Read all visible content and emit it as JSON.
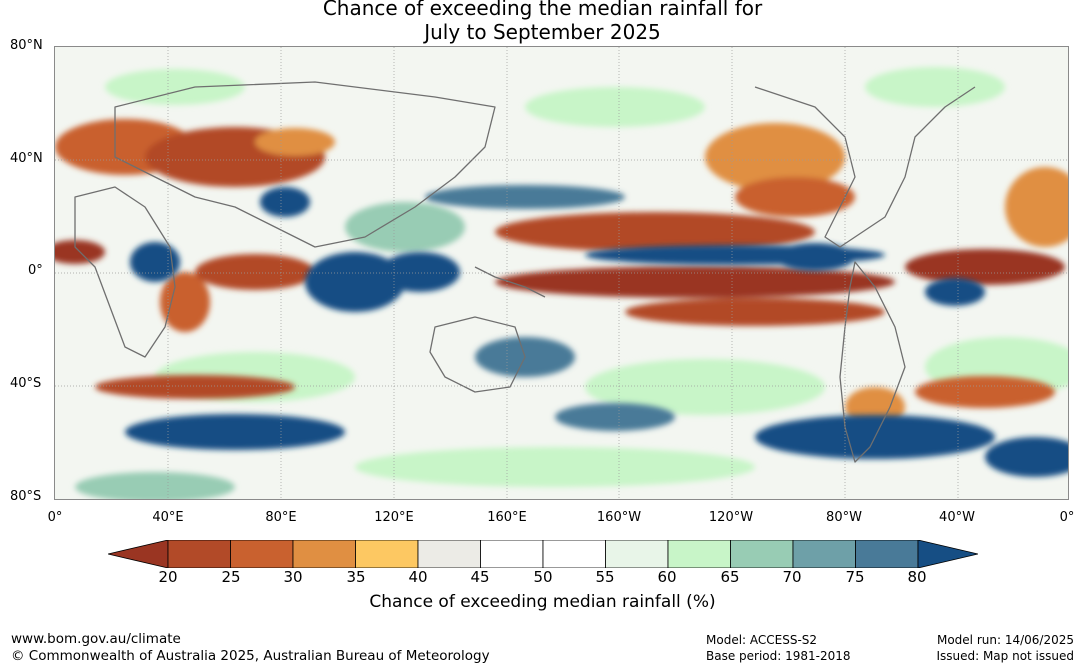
{
  "title": {
    "line1": "Chance of exceeding the median rainfall for",
    "line2": "July to September 2025"
  },
  "map": {
    "lat_labels": [
      "80°N",
      "40°N",
      "0°",
      "40°S",
      "80°S"
    ],
    "lon_labels": [
      "0°",
      "40°E",
      "80°E",
      "120°E",
      "160°E",
      "160°W",
      "120°W",
      "80°W",
      "40°W",
      "0°"
    ],
    "lat_values": [
      80,
      40,
      0,
      -40,
      -80
    ],
    "lon_values": [
      0,
      40,
      80,
      120,
      160,
      200,
      240,
      280,
      320,
      360
    ]
  },
  "colorbar": {
    "ticks": [
      "20",
      "25",
      "30",
      "35",
      "40",
      "45",
      "50",
      "55",
      "60",
      "65",
      "70",
      "75",
      "80"
    ],
    "colors": [
      "#9a3522",
      "#b24a28",
      "#c9612f",
      "#e08f42",
      "#fdc862",
      "#ecebe6",
      "#ffffff",
      "#ffffff",
      "#e8f5e8",
      "#c8f5c8",
      "#98ccb4",
      "#6ea0a8",
      "#497a98",
      "#164e84"
    ],
    "label": "Chance of exceeding median rainfall (%)"
  },
  "footer": {
    "url": "www.bom.gov.au/climate",
    "copyright": "© Commonwealth of Australia 2025, Australian Bureau of Meteorology",
    "model": "Model: ACCESS-S2",
    "base_period": "Base period: 1981-2018",
    "model_run": "Model run: 14/06/2025",
    "issued": "Issued: Map not issued"
  }
}
